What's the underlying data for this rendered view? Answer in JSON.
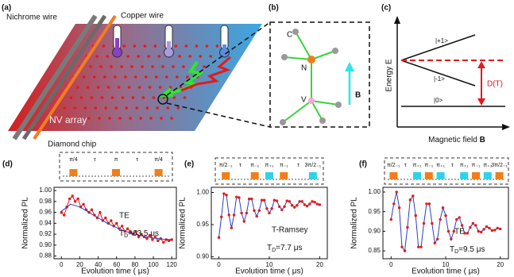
{
  "figure": {
    "a": {
      "label": "(a)",
      "nichrome": "Nichrome wire",
      "copper": "Copper wire",
      "array": "NV array",
      "chip": "Diamond chip"
    },
    "b": {
      "label": "(b)",
      "carbon": "C",
      "nitrogen": "N",
      "vacancy": "V",
      "field": "B"
    },
    "c": {
      "label": "(c)",
      "plus": "|+1>",
      "minus": "|-1>",
      "zero": "|0>",
      "splitting": "D(T)",
      "ylabel": "Energy E",
      "xlabel": "Magnetic field ",
      "xlabel_bold": "B"
    }
  },
  "chart_data": [
    {
      "type": "line",
      "panel": "(d)",
      "xlabel": "Evolution time ( μs)",
      "ylabel": "Normalized PL",
      "annotation": "TE",
      "td": {
        "symbol": "T",
        "sub": "D",
        "text": "=63.5 μs"
      },
      "pulses": [
        {
          "label": "π/4",
          "color": "#f07f1a"
        },
        {
          "label": "τ"
        },
        {
          "label": "π",
          "color": "#f07f1a"
        },
        {
          "label": "τ"
        },
        {
          "label": "π/4",
          "color": "#f07f1a"
        }
      ],
      "xlim": [
        -8,
        125
      ],
      "xticks": [
        0,
        20,
        40,
        60,
        80,
        100,
        120
      ],
      "ylim": [
        0.875,
        1.006
      ],
      "yticks": [
        0.88,
        {
          "value": 0.9,
          "label": "0.90"
        },
        0.92,
        0.94,
        0.96,
        0.98,
        {
          "value": 1,
          "label": "1.00"
        }
      ],
      "series": [
        {
          "color": "#e31a1c",
          "line": true,
          "markers": true,
          "x": [
            0,
            3,
            6,
            9,
            12,
            15,
            18,
            21,
            24,
            27,
            30,
            33,
            36,
            39,
            42,
            45,
            48,
            51,
            54,
            57,
            60,
            63,
            66,
            69,
            72,
            75,
            78,
            81,
            84,
            87,
            90,
            93,
            96,
            99,
            102,
            105,
            108,
            111,
            114,
            117,
            120
          ],
          "values": [
            0.96,
            0.955,
            0.97,
            0.985,
            0.99,
            0.98,
            0.985,
            0.97,
            0.975,
            0.965,
            0.96,
            0.965,
            0.955,
            0.95,
            0.96,
            0.945,
            0.95,
            0.94,
            0.945,
            0.935,
            0.94,
            0.93,
            0.935,
            0.925,
            0.93,
            0.925,
            0.92,
            0.925,
            0.915,
            0.92,
            0.915,
            0.912,
            0.918,
            0.91,
            0.915,
            0.908,
            0.912,
            0.905,
            0.91,
            0.908,
            0.91
          ]
        },
        {
          "color": "#2b3fc4",
          "line": true,
          "markers": false,
          "x": [
            0,
            10,
            20,
            30,
            40,
            50,
            60,
            70,
            80,
            90,
            100,
            110,
            120
          ],
          "values": [
            0.962,
            0.975,
            0.97,
            0.96,
            0.95,
            0.94,
            0.932,
            0.925,
            0.92,
            0.916,
            0.913,
            0.911,
            0.91
          ]
        }
      ]
    },
    {
      "type": "line",
      "panel": "(e)",
      "xlabel": "Evolution time ( μs)",
      "ylabel": "Normalized PL",
      "annotation": "T-Ramsey",
      "td": {
        "symbol": "T",
        "sub": "D",
        "text": "=7.7 μs"
      },
      "pulses": [
        {
          "label": "π/2₋₁",
          "color": "#f07f1a"
        },
        {
          "label": "τ"
        },
        {
          "label": "π₋₁",
          "color": "#f07f1a"
        },
        {
          "label": "π₊₁",
          "color": "#2ed3e6"
        },
        {
          "label": "π₋₁",
          "color": "#f07f1a"
        },
        {
          "label": "τ"
        },
        {
          "label": "3π/2₋₁",
          "color": "#2ed3e6"
        }
      ],
      "xlim": [
        -1.5,
        21.5
      ],
      "xticks": [
        0,
        10,
        20
      ],
      "ylim": [
        0.897,
        1.008
      ],
      "yticks": [
        {
          "value": 0.9,
          "label": "0.90"
        },
        0.95,
        {
          "value": 1,
          "label": "1.00"
        }
      ],
      "series": [
        {
          "color": "#2b3fc4",
          "marker_color": "#e31a1c",
          "line": true,
          "markers": true,
          "x": [
            0,
            0.5,
            1,
            1.5,
            2,
            2.5,
            3,
            3.5,
            4,
            4.5,
            5,
            5.5,
            6,
            6.5,
            7,
            7.5,
            8,
            8.5,
            9,
            9.5,
            10,
            10.5,
            11,
            11.5,
            12,
            12.5,
            13,
            13.5,
            14,
            14.5,
            15,
            15.5,
            16,
            16.5,
            17,
            17.5,
            18,
            18.5,
            19,
            19.5,
            20
          ],
          "values": [
            0.93,
            0.962,
            0.998,
            0.996,
            0.965,
            0.945,
            0.965,
            0.993,
            0.992,
            0.968,
            0.955,
            0.968,
            0.99,
            0.99,
            0.972,
            0.963,
            0.972,
            0.988,
            0.988,
            0.975,
            0.968,
            0.975,
            0.988,
            0.987,
            0.978,
            0.973,
            0.978,
            0.987,
            0.986,
            0.98,
            0.977,
            0.98,
            0.986,
            0.986,
            0.981,
            0.979,
            0.982,
            0.986,
            0.985,
            0.982,
            0.981
          ]
        }
      ]
    },
    {
      "type": "line",
      "panel": "(f)",
      "xlabel": "Evolution time ( μs)",
      "ylabel": "Normalized PL",
      "annotation": "TE",
      "td": {
        "symbol": "T",
        "sub": "D",
        "text": "=9.5 μs"
      },
      "pulses": [
        {
          "label": "π/2₋₁",
          "color": "#f07f1a"
        },
        {
          "label": "τ"
        },
        {
          "label": "π₊₁",
          "color": "#2ed3e6"
        },
        {
          "label": "π₋₁",
          "color": "#f07f1a"
        },
        {
          "label": "π₊₁",
          "color": "#2ed3e6"
        },
        {
          "label": "τ"
        },
        {
          "label": "π₊₁",
          "color": "#2ed3e6"
        },
        {
          "label": "π₋₁",
          "color": "#f07f1a"
        },
        {
          "label": "π₊₁",
          "color": "#2ed3e6"
        },
        {
          "label": "3π/2₋₁",
          "color": "#f07f1a"
        }
      ],
      "xlim": [
        -1.5,
        21.5
      ],
      "xticks": [
        0,
        10,
        20
      ],
      "ylim": [
        0.83,
        1.012
      ],
      "yticks": [
        0.85,
        {
          "value": 0.9,
          "label": "0.90"
        },
        0.95,
        {
          "value": 1,
          "label": "1.00"
        }
      ],
      "series": [
        {
          "color": "#2b3fc4",
          "marker_color": "#e31a1c",
          "line": true,
          "markers": true,
          "x": [
            0,
            0.5,
            1,
            1.5,
            2,
            2.5,
            3,
            3.5,
            4,
            4.5,
            5,
            5.5,
            6,
            6.5,
            7,
            7.5,
            8,
            8.5,
            9,
            9.5,
            10,
            10.5,
            11,
            11.5,
            12,
            12.5,
            13,
            13.5,
            14,
            14.5,
            15,
            15.5,
            16,
            16.5,
            17,
            17.5,
            18,
            18.5,
            19,
            19.5,
            20
          ],
          "values": [
            0.93,
            0.97,
            1.0,
            0.96,
            0.86,
            0.85,
            0.91,
            0.98,
            0.99,
            0.94,
            0.86,
            0.86,
            0.92,
            0.97,
            0.97,
            0.92,
            0.87,
            0.88,
            0.93,
            0.96,
            0.94,
            0.9,
            0.88,
            0.9,
            0.93,
            0.935,
            0.915,
            0.895,
            0.895,
            0.91,
            0.92,
            0.915,
            0.9,
            0.898,
            0.905,
            0.912,
            0.908,
            0.902,
            0.903,
            0.908,
            0.906
          ]
        }
      ]
    }
  ]
}
